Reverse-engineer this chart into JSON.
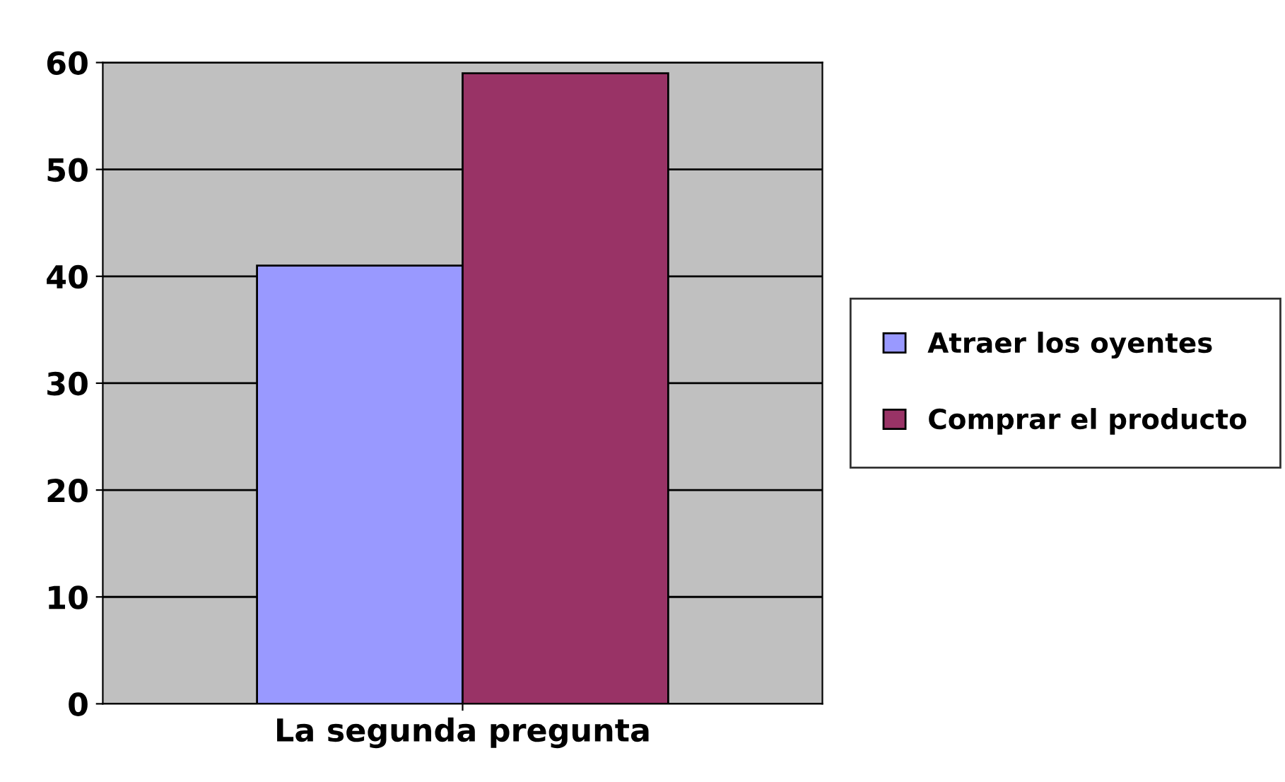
{
  "chart_data": {
    "type": "bar",
    "categories": [
      "La segunda pregunta"
    ],
    "series": [
      {
        "name": "Atraer los oyentes",
        "color": "#9999ff",
        "values": [
          41
        ]
      },
      {
        "name": "Comprar el producto",
        "color": "#993366",
        "values": [
          59
        ]
      }
    ],
    "ylim": [
      0,
      60
    ],
    "yticks": [
      0,
      10,
      20,
      30,
      40,
      50,
      60
    ],
    "grid": "y",
    "legend": "right"
  }
}
